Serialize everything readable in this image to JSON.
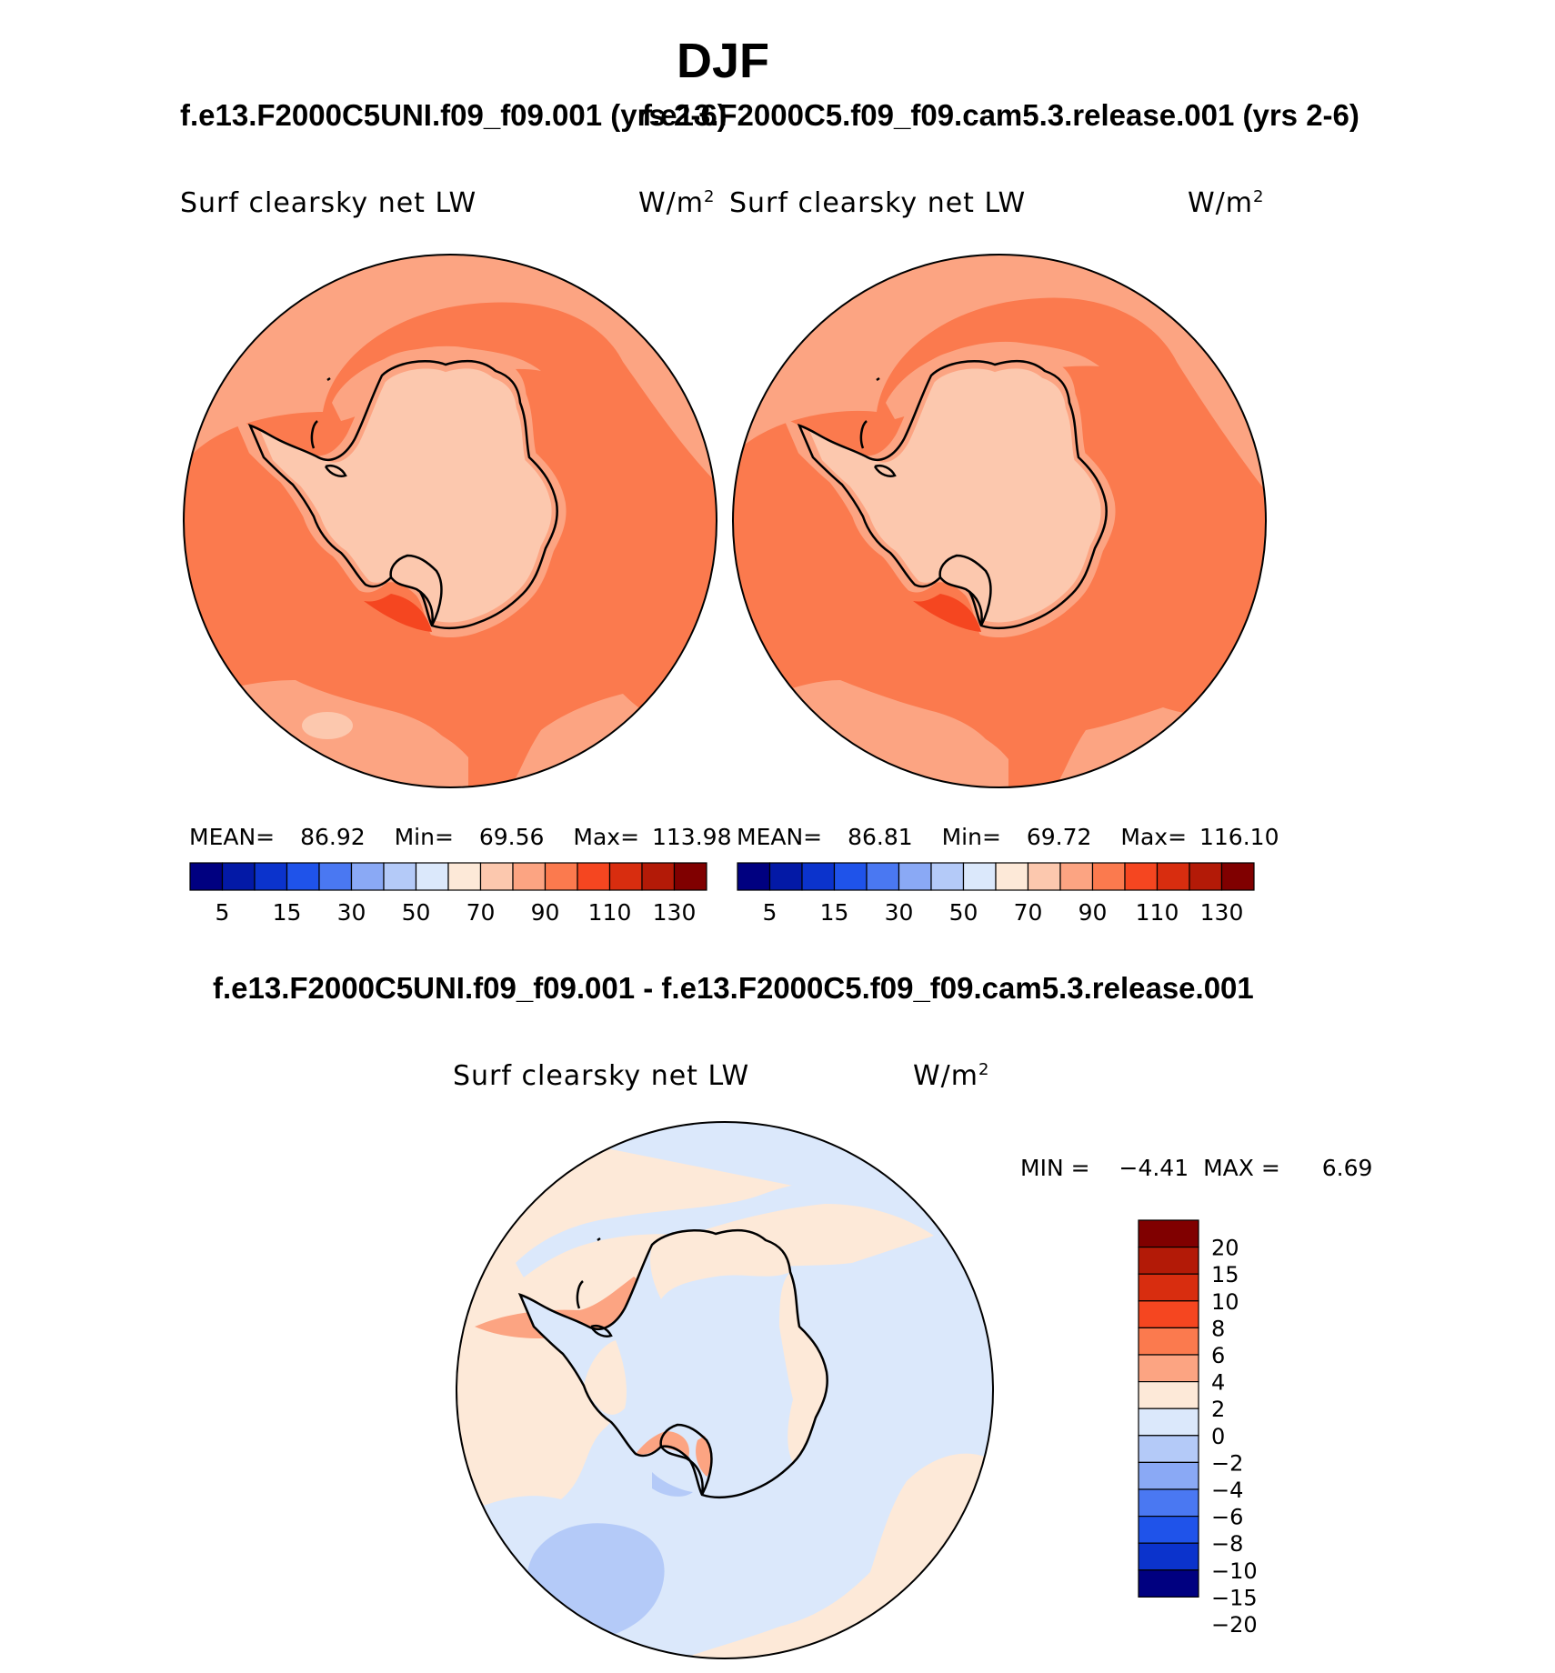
{
  "header": {
    "title": "DJF"
  },
  "panels": [
    {
      "case_title": "f.e13.F2000C5UNI.f09_f09.001 (yrs 2-6)",
      "variable": "Surf clearsky net LW",
      "units": "W/m",
      "units_sup": "2",
      "stats": {
        "mean_label": "MEAN=",
        "mean": "86.92",
        "min_label": "Min=",
        "min": "69.56",
        "max_label": "Max=",
        "max": "113.98"
      }
    },
    {
      "case_title": "f.e13.F2000C5.f09_f09.cam5.3.release.001 (yrs 2-6)",
      "variable": "Surf clearsky net LW",
      "units": "W/m",
      "units_sup": "2",
      "stats": {
        "mean_label": "MEAN=",
        "mean": "86.81",
        "min_label": "Min=",
        "min": "69.72",
        "max_label": "Max=",
        "max": "116.10"
      }
    }
  ],
  "abs_colorbar": {
    "colors": [
      "#000080",
      "#0319a6",
      "#0b33cc",
      "#1f53ea",
      "#4a78f2",
      "#8aa9f5",
      "#b4caf8",
      "#dbe8fb",
      "#fde9d8",
      "#fcc8ae",
      "#fca482",
      "#fb7a4e",
      "#f54620",
      "#d82d0f",
      "#b31a07",
      "#800000"
    ],
    "tick_labels": [
      "5",
      "15",
      "30",
      "50",
      "70",
      "90",
      "110",
      "130"
    ]
  },
  "difference": {
    "title": "f.e13.F2000C5UNI.f09_f09.001 - f.e13.F2000C5.f09_f09.cam5.3.release.001",
    "variable": "Surf clearsky net LW",
    "units": "W/m",
    "units_sup": "2",
    "min_label": "MIN =",
    "min": "−4.41",
    "max_label": "MAX =",
    "max": "6.69",
    "colorbar": {
      "colors": [
        "#800000",
        "#b31a07",
        "#d82d0f",
        "#f54620",
        "#fb7a4e",
        "#fca482",
        "#fde9d8",
        "#dbe8fb",
        "#b4caf8",
        "#8aa9f5",
        "#4a78f2",
        "#1f53ea",
        "#0b33cc",
        "#000080"
      ],
      "tick_labels": [
        "20",
        "15",
        "10",
        "8",
        "6",
        "4",
        "2",
        "0",
        "−2",
        "−4",
        "−6",
        "−8",
        "−10",
        "−15",
        "−20"
      ]
    }
  }
}
